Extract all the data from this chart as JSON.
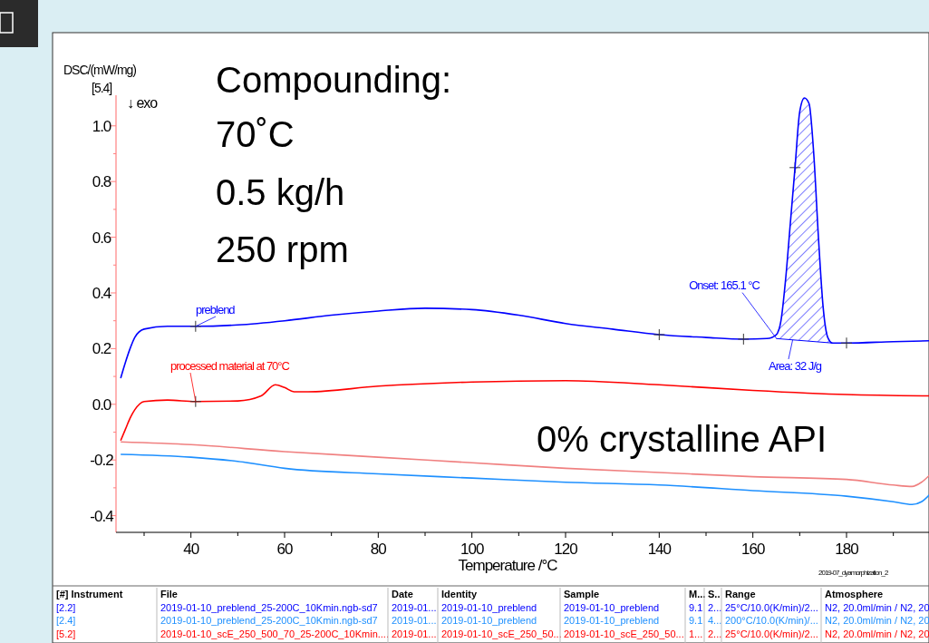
{
  "chart_data": {
    "type": "line",
    "xlabel": "Temperature /°C",
    "ylabel": "DSC/(mW/mg)",
    "xlim": [
      24,
      198
    ],
    "ylim": [
      -0.46,
      1.11
    ],
    "xticks": [
      {
        "value": 30,
        "label": null
      },
      40,
      {
        "value": 50,
        "label": null
      },
      60,
      {
        "value": 70,
        "label": null
      },
      80,
      {
        "value": 90,
        "label": null
      },
      100,
      {
        "value": 110,
        "label": null
      },
      120,
      {
        "value": 130,
        "label": null
      },
      140,
      {
        "value": 150,
        "label": null
      },
      160,
      {
        "value": 170,
        "label": null
      },
      180,
      {
        "value": 190,
        "label": null
      }
    ],
    "yticks": [
      {
        "value": -0.4,
        "label": "-0.4"
      },
      {
        "value": -0.3,
        "label": null
      },
      {
        "value": -0.2,
        "label": "-0.2"
      },
      {
        "value": -0.1,
        "label": null
      },
      {
        "value": 0,
        "label": "0.0"
      },
      {
        "value": 0.1,
        "label": null
      },
      0.2,
      {
        "value": 0.3,
        "label": null
      },
      0.4,
      {
        "value": 0.5,
        "label": null
      },
      0.6,
      {
        "value": 0.7,
        "label": null
      },
      0.8,
      {
        "value": 0.9,
        "label": null
      },
      {
        "value": 1,
        "label": "1.0"
      }
    ],
    "marker": "none",
    "line_style": "solid",
    "series": [
      {
        "name": "preblend",
        "color": "#0000ff",
        "x": [
          25,
          26,
          27,
          28,
          30,
          35,
          41,
          50,
          60,
          70,
          80,
          90,
          100,
          110,
          120,
          130,
          140,
          150,
          158,
          163,
          165,
          166,
          167,
          168,
          169,
          170,
          171,
          172,
          173,
          174,
          175,
          176,
          177,
          180,
          190,
          198
        ],
        "values": [
          0.094,
          0.15,
          0.2,
          0.24,
          0.27,
          0.28,
          0.28,
          0.285,
          0.3,
          0.32,
          0.335,
          0.345,
          0.34,
          0.32,
          0.29,
          0.27,
          0.25,
          0.24,
          0.234,
          0.236,
          0.25,
          0.3,
          0.45,
          0.65,
          0.85,
          1.05,
          1.1,
          1.08,
          0.9,
          0.6,
          0.35,
          0.24,
          0.22,
          0.22,
          0.225,
          0.228
        ]
      },
      {
        "name": "processed material at 70°C",
        "color": "#ff0000",
        "x": [
          25,
          26,
          27,
          28,
          30,
          35,
          41,
          50,
          55,
          58,
          60,
          62,
          65,
          80,
          100,
          120,
          140,
          160,
          180,
          198
        ],
        "values": [
          -0.13,
          -0.09,
          -0.05,
          -0.02,
          0.01,
          0.015,
          0.01,
          0.012,
          0.03,
          0.07,
          0.06,
          0.045,
          0.045,
          0.065,
          0.08,
          0.085,
          0.07,
          0.05,
          0.035,
          0.03
        ]
      },
      {
        "color": "#f08080",
        "x": [
          25,
          40,
          60,
          80,
          100,
          120,
          140,
          160,
          180,
          190,
          194,
          196,
          198
        ],
        "values": [
          -0.135,
          -0.145,
          -0.17,
          -0.19,
          -0.21,
          -0.23,
          -0.245,
          -0.26,
          -0.27,
          -0.29,
          -0.295,
          -0.28,
          -0.25
        ]
      },
      {
        "color": "#1e90ff",
        "x": [
          25,
          40,
          50,
          60,
          80,
          100,
          120,
          140,
          160,
          180,
          190,
          194,
          196,
          198
        ],
        "values": [
          -0.18,
          -0.19,
          -0.205,
          -0.23,
          -0.25,
          -0.265,
          -0.28,
          -0.29,
          -0.31,
          -0.33,
          -0.35,
          -0.36,
          -0.35,
          -0.32
        ]
      }
    ],
    "annotations": [
      "Compounding:",
      "70˚C",
      "0.5 kg/h",
      "250 rpm",
      "0% crystalline API",
      "↓ exo",
      "[5.4]",
      "2019-07_dyamorphization_2",
      {
        "text": "Onset: 165.1 °C",
        "x": 165.1,
        "y": 0.235
      },
      "Area: 32 J/g",
      "[#] Instrument",
      "File",
      "Date",
      "Identity",
      "Sample",
      "M...",
      "S..",
      "Range",
      "Atmosphere",
      "[2.2]",
      "2019-01-10_preblend_25-200C_10Kmin.ngb-sd7",
      "2019-01...",
      "2019-01-10_preblend",
      "2019-01-10_preblend",
      "9.1",
      "2...",
      "25°C/10.0(K/min)/2...",
      "N2, 20.0ml/min / N2, 20",
      "[2.4]",
      "2019-01-10_preblend_25-200C_10Kmin.ngb-sd7",
      "2019-01...",
      "2019-01-10_preblend",
      "2019-01-10_preblend",
      "9.1",
      "4...",
      "200°C/10.0(K/min)/...",
      "N2, 20.0ml/min / N2, 20",
      "[5.2]",
      "2019-01-10_scE_250_500_70_25-200C_10Kmin....",
      "2019-01...",
      "2019-01-10_scE_250_50...",
      "2019-01-10_scE_250_50...",
      "1...",
      "2...",
      "25°C/10.0(K/min)/2...",
      "N2, 20.0ml/min / N2, 20"
    ]
  }
}
